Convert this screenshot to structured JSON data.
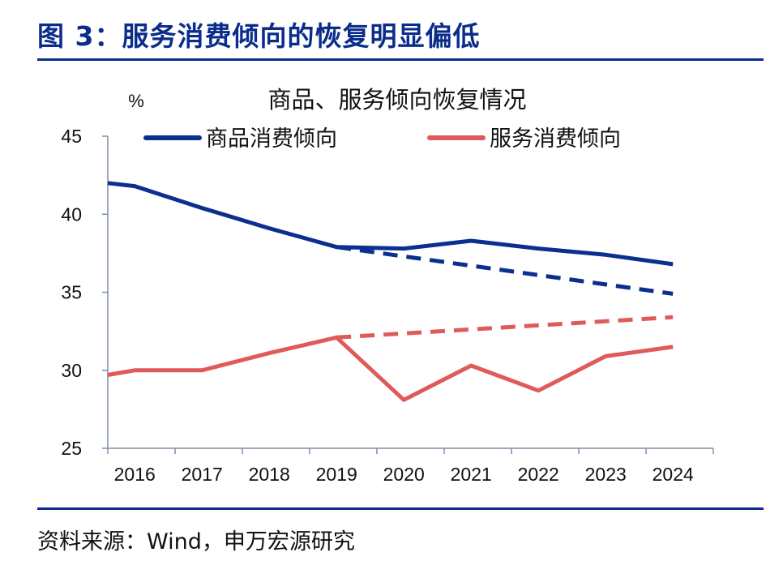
{
  "figure": {
    "title": "图 3：服务消费倾向的恢复明显偏低",
    "source": "资料来源：Wind，申万宏源研究"
  },
  "colors": {
    "navy": "#0a2d8c",
    "goods": "#0b2f8f",
    "services": "#e05a5a",
    "axis": "#7f8fa8"
  },
  "chart_data": {
    "type": "line",
    "title": "商品、服务倾向恢复情况",
    "ylabel": "%",
    "xlabel": "",
    "categories": [
      "2016",
      "2017",
      "2018",
      "2019",
      "2020",
      "2021",
      "2022",
      "2023",
      "2024"
    ],
    "ylim": [
      25,
      45
    ],
    "yticks": [
      "25",
      "30",
      "35",
      "40",
      "45"
    ],
    "legend_position": "top",
    "grid": false,
    "series": [
      {
        "name": "商品消费倾向",
        "color": "#0b2f8f",
        "style": "solid",
        "points": [
          [
            2015.6,
            42.0
          ],
          [
            2016,
            41.8
          ],
          [
            2017,
            40.4
          ],
          [
            2018,
            39.1
          ],
          [
            2019,
            37.9
          ],
          [
            2020,
            37.8
          ],
          [
            2021,
            38.3
          ],
          [
            2022,
            37.8
          ],
          [
            2023,
            37.4
          ],
          [
            2024,
            36.8
          ]
        ]
      },
      {
        "name": "",
        "color": "#0b2f8f",
        "style": "dashed",
        "points": [
          [
            2019,
            37.9
          ],
          [
            2024,
            34.9
          ]
        ]
      },
      {
        "name": "服务消费倾向",
        "color": "#e05a5a",
        "style": "solid",
        "points": [
          [
            2015.6,
            29.7
          ],
          [
            2016,
            30.0
          ],
          [
            2017,
            30.0
          ],
          [
            2018,
            31.1
          ],
          [
            2019,
            32.1
          ],
          [
            2020,
            28.1
          ],
          [
            2021,
            30.3
          ],
          [
            2022,
            28.7
          ],
          [
            2023,
            30.9
          ],
          [
            2024,
            31.5
          ]
        ]
      },
      {
        "name": "",
        "color": "#e05a5a",
        "style": "dashed",
        "points": [
          [
            2019,
            32.1
          ],
          [
            2024,
            33.4
          ]
        ]
      }
    ]
  }
}
